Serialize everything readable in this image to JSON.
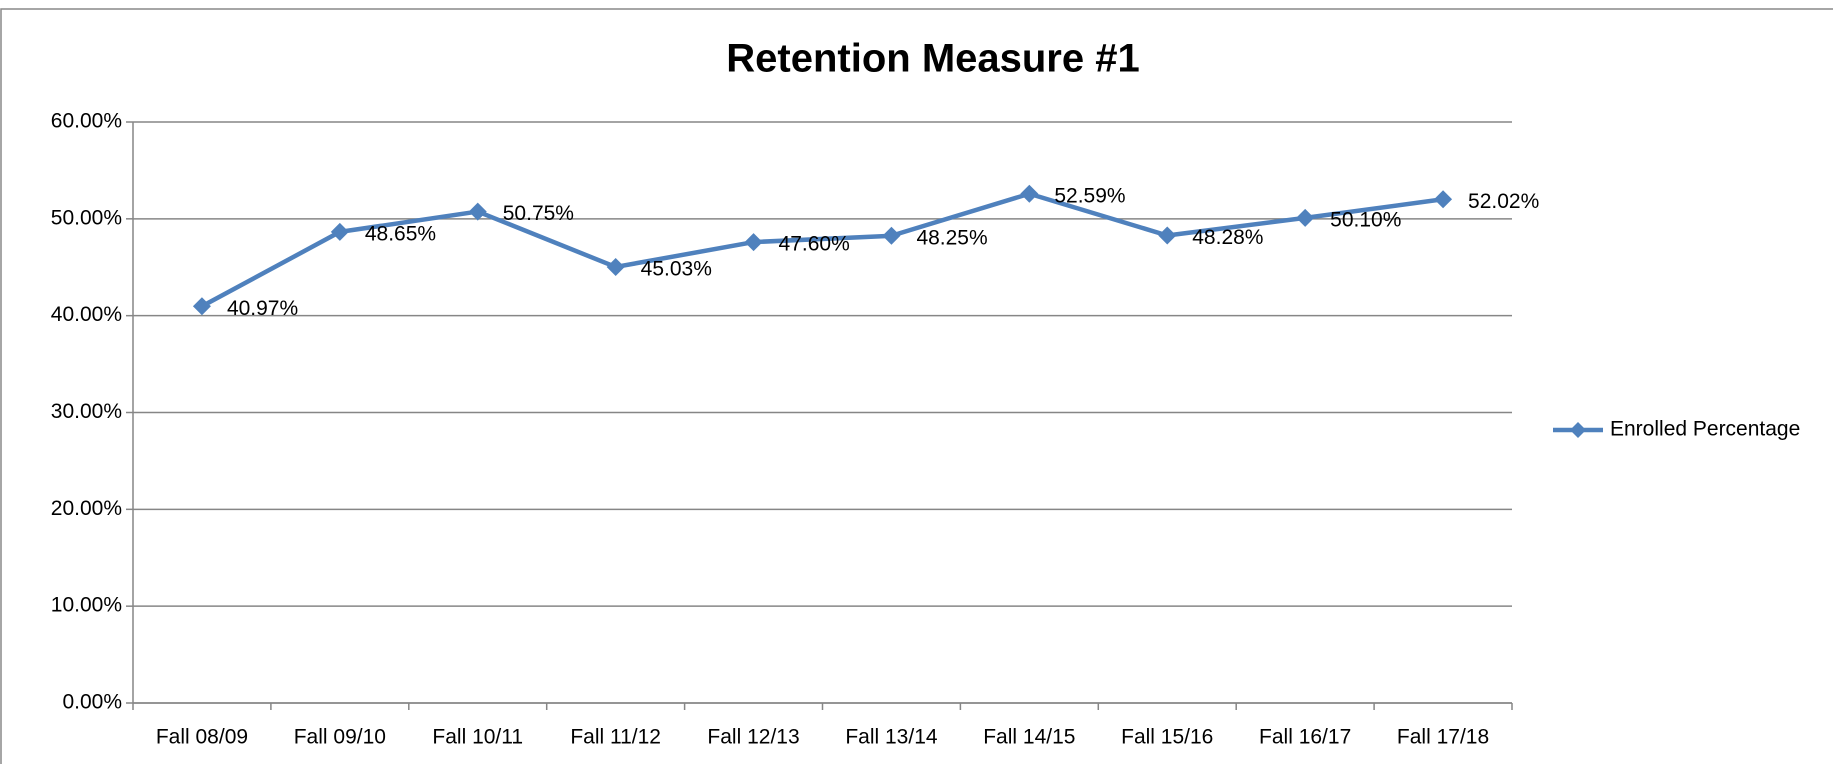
{
  "chart_data": {
    "type": "line",
    "title": "Retention Measure #1",
    "categories": [
      "Fall 08/09",
      "Fall 09/10",
      "Fall 10/11",
      "Fall 11/12",
      "Fall 12/13",
      "Fall 13/14",
      "Fall 14/15",
      "Fall 15/16",
      "Fall 16/17",
      "Fall 17/18"
    ],
    "series": [
      {
        "name": "Enrolled Percentage",
        "color": "#4f81bd",
        "values": [
          40.97,
          48.65,
          50.75,
          45.03,
          47.6,
          48.25,
          52.59,
          48.28,
          50.1,
          52.02
        ],
        "value_labels": [
          "40.97%",
          "48.65%",
          "50.75%",
          "45.03%",
          "47.60%",
          "48.25%",
          "52.59%",
          "48.28%",
          "50.10%",
          "52.02%"
        ]
      }
    ],
    "ylim": [
      0,
      60
    ],
    "yticks": [
      {
        "value": 0,
        "label": "0.00%"
      },
      {
        "value": 10,
        "label": "10.00%"
      },
      {
        "value": 20,
        "label": "20.00%"
      },
      {
        "value": 30,
        "label": "30.00%"
      },
      {
        "value": 40,
        "label": "40.00%"
      },
      {
        "value": 50,
        "label": "50.00%"
      },
      {
        "value": 60,
        "label": "60.00%"
      }
    ],
    "grid": true,
    "legend": "right"
  }
}
